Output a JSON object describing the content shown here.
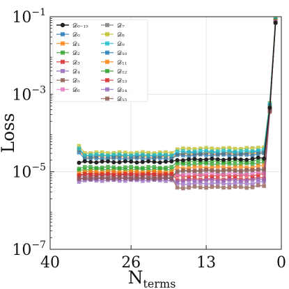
{
  "chart_data": {
    "type": "line",
    "title": "",
    "xlabel_main": "N",
    "xlabel_sub": "terms",
    "ylabel": "Loss",
    "x_reversed": true,
    "xlim": [
      40,
      0
    ],
    "ylim": [
      1e-07,
      0.1
    ],
    "yscale": "log",
    "grid": true,
    "legend_position": "top-left",
    "x_ticks": [
      {
        "value": 40,
        "label": "40"
      },
      {
        "value": 26,
        "label": "26"
      },
      {
        "value": 13,
        "label": "13"
      },
      {
        "value": 0,
        "label": "0"
      }
    ],
    "y_ticks": [
      {
        "value": 1e-07,
        "base": "10",
        "exp": "−7"
      },
      {
        "value": 1e-05,
        "base": "10",
        "exp": "−5"
      },
      {
        "value": 0.001,
        "base": "10",
        "exp": "−3"
      },
      {
        "value": 0.1,
        "base": "10",
        "exp": "−1"
      }
    ],
    "x": [
      35,
      34,
      33,
      32,
      31,
      30,
      29,
      28,
      27,
      26,
      25,
      24,
      23,
      22,
      21,
      20,
      19,
      18,
      17,
      16,
      15,
      14,
      13,
      12,
      11,
      10,
      9,
      8,
      7,
      6,
      5,
      4,
      3,
      2,
      1
    ],
    "series": [
      {
        "name": "𝒟₀₋₁₅",
        "sub": "0−15",
        "color": "#222222",
        "marker": "circle",
        "plateau": [
          1.8e-05,
          2.1e-05
        ],
        "end": [
          0.00045,
          0.07
        ]
      },
      {
        "name": "𝒟₀",
        "sub": "0",
        "color": "#1f77b4",
        "marker": "square",
        "plateau": [
          2.6e-05,
          3.1e-05
        ],
        "end": [
          0.0005,
          0.085
        ]
      },
      {
        "name": "𝒟₁",
        "sub": "1",
        "color": "#ff7f0e",
        "marker": "square",
        "plateau": [
          2.4e-05,
          2.9e-05
        ],
        "end": [
          0.00055,
          0.08
        ]
      },
      {
        "name": "𝒟₂",
        "sub": "2",
        "color": "#2ca02c",
        "marker": "square",
        "plateau": [
          1.15e-05,
          1.6e-05
        ],
        "end": [
          0.0004,
          0.075
        ]
      },
      {
        "name": "𝒟₃",
        "sub": "3",
        "color": "#d62728",
        "marker": "square",
        "plateau": [
          9e-06,
          8e-06
        ],
        "end": [
          0.00042,
          0.078
        ]
      },
      {
        "name": "𝒟₄",
        "sub": "4",
        "color": "#9467bd",
        "marker": "square",
        "plateau": [
          6e-06,
          5e-06
        ],
        "end": [
          0.00038,
          0.072
        ]
      },
      {
        "name": "𝒟₅",
        "sub": "5",
        "color": "#8c564b",
        "marker": "square",
        "plateau": [
          7e-06,
          4e-06
        ],
        "end": [
          0.00035,
          0.07
        ]
      },
      {
        "name": "𝒟₆",
        "sub": "6",
        "color": "#e377c2",
        "marker": "square",
        "plateau": [
          7.5e-06,
          9e-06
        ],
        "end": [
          0.00048,
          0.082
        ]
      },
      {
        "name": "𝒟₇",
        "sub": "7",
        "color": "#7f7f7f",
        "marker": "square",
        "plateau": [
          8e-06,
          1.05e-05
        ],
        "end": [
          0.00052,
          0.088
        ]
      },
      {
        "name": "𝒟₈",
        "sub": "8",
        "color": "#bcbd22",
        "marker": "square",
        "plateau": [
          3.1e-05,
          4e-05
        ],
        "end": [
          0.0006,
          0.09
        ]
      },
      {
        "name": "𝒟₉",
        "sub": "9",
        "color": "#17becf",
        "marker": "square",
        "plateau": [
          2.7e-05,
          3.4e-05
        ],
        "end": [
          0.00058,
          0.086
        ]
      },
      {
        "name": "𝒟₁₀",
        "sub": "10",
        "color": "#1f77b4",
        "marker": "square",
        "plateau": [
          2.2e-05,
          2.7e-05
        ],
        "end": [
          0.00051,
          0.083
        ]
      },
      {
        "name": "𝒟₁₁",
        "sub": "11",
        "color": "#ff7f0e",
        "marker": "square",
        "plateau": [
          1e-05,
          1.3e-05
        ],
        "end": [
          0.00044,
          0.079
        ]
      },
      {
        "name": "𝒟₁₂",
        "sub": "12",
        "color": "#2ca02c",
        "marker": "square",
        "plateau": [
          1.3e-05,
          1.85e-05
        ],
        "end": [
          0.00046,
          0.081
        ]
      },
      {
        "name": "𝒟₁₃",
        "sub": "13",
        "color": "#d62728",
        "marker": "square",
        "plateau": [
          8.5e-06,
          6.5e-06
        ],
        "end": [
          0.00041,
          0.076
        ]
      },
      {
        "name": "𝒟₁₄",
        "sub": "14",
        "color": "#9467bd",
        "marker": "square",
        "plateau": [
          6.5e-06,
          6e-06
        ],
        "end": [
          0.00039,
          0.074
        ]
      },
      {
        "name": "𝒟₁₅",
        "sub": "15",
        "color": "#8c564b",
        "marker": "square",
        "plateau": [
          6.8e-06,
          1.1e-05
        ],
        "end": [
          0.00037,
          0.071
        ]
      }
    ]
  }
}
